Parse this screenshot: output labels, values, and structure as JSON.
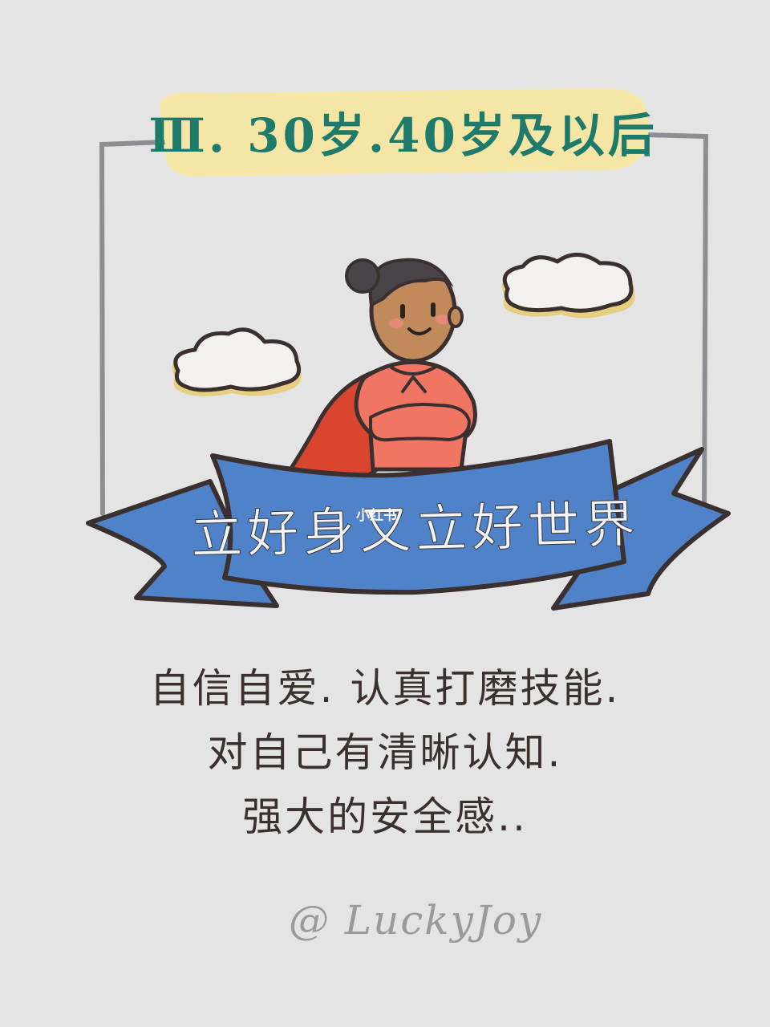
{
  "title": "Ⅲ. 30岁.40岁及以后",
  "banner": "立好身又立好世界",
  "watermark": "小红书",
  "caption": {
    "lines": [
      "自信自爱. 认真打磨技能.",
      "对自己有清晰认知.",
      "强大的安全感.."
    ]
  },
  "signature": "@ LuckyJoy",
  "colors": {
    "background": "#e4e4e5",
    "title_band": "#f6e6a6",
    "title_text": "#1e7a6a",
    "banner_blue": "#4f82c8",
    "cape_red": "#d9452f",
    "shirt_pink": "#f17563",
    "skin": "#c08a5a",
    "hair": "#4a4347",
    "cloud_fill": "#f4f2ee",
    "cloud_shadow": "#e6cf80",
    "outline": "#3b3030"
  }
}
